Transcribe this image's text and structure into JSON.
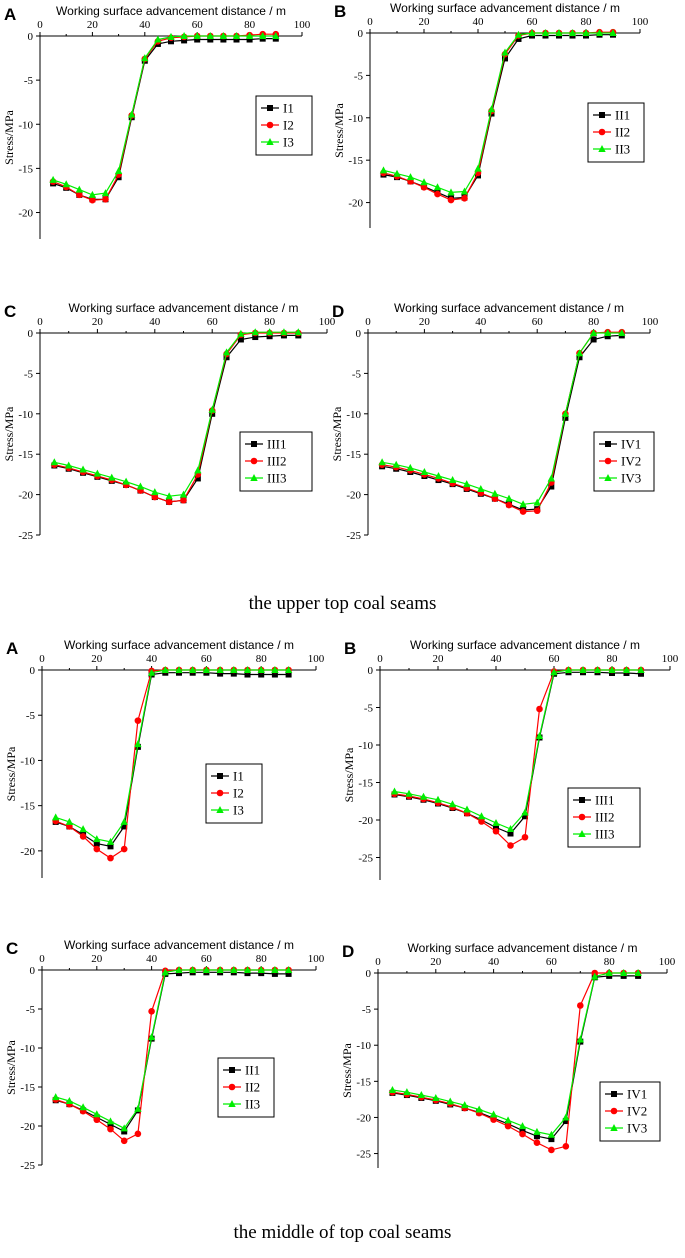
{
  "captions": {
    "upper": "the upper top coal seams",
    "middle": "the middle of top coal seams"
  },
  "colors": {
    "series1": "#000000",
    "series2": "#ff0000",
    "series3": "#00ee00"
  },
  "chart_data": [
    {
      "type": "line",
      "panel": "A",
      "group": "upper",
      "xlabel": "Working surface advancement distance / m",
      "ylabel": "Stress/MPa",
      "xlim": [
        0,
        100
      ],
      "ylim": [
        -23,
        0
      ],
      "xticks": [
        0,
        20,
        40,
        60,
        80,
        100
      ],
      "yticks": [
        0,
        -5,
        -10,
        -15,
        -20
      ],
      "x": [
        5,
        10,
        15,
        20,
        25,
        30,
        35,
        40,
        45,
        50,
        55,
        60,
        65,
        70,
        75,
        80,
        85,
        90
      ],
      "series": [
        {
          "name": "I1",
          "marker": "square",
          "values": [
            -16.7,
            -17.2,
            -18.0,
            -18.5,
            -18.5,
            -16.0,
            -9.2,
            -2.8,
            -0.9,
            -0.6,
            -0.5,
            -0.4,
            -0.4,
            -0.4,
            -0.4,
            -0.4,
            -0.3,
            -0.3
          ]
        },
        {
          "name": "I2",
          "marker": "circle",
          "values": [
            -16.5,
            -17.1,
            -18.0,
            -18.6,
            -18.5,
            -15.7,
            -9.0,
            -2.6,
            -0.6,
            -0.2,
            -0.1,
            0,
            0,
            0,
            0,
            0.1,
            0.2,
            0.2
          ]
        },
        {
          "name": "I3",
          "marker": "triangle",
          "values": [
            -16.3,
            -16.8,
            -17.4,
            -18.0,
            -17.8,
            -15.3,
            -8.9,
            -2.5,
            -0.4,
            -0.1,
            0,
            0,
            0,
            0,
            0,
            0,
            0,
            0
          ]
        }
      ]
    },
    {
      "type": "line",
      "panel": "B",
      "group": "upper",
      "xlabel": "Working surface advancement distance / m",
      "ylabel": "Stress/MPa",
      "xlim": [
        0,
        100
      ],
      "ylim": [
        -23,
        0
      ],
      "xticks": [
        0,
        20,
        40,
        60,
        80,
        100
      ],
      "yticks": [
        0,
        -5,
        -10,
        -15,
        -20
      ],
      "x": [
        5,
        10,
        15,
        20,
        25,
        30,
        35,
        40,
        45,
        50,
        55,
        60,
        65,
        70,
        75,
        80,
        85,
        90
      ],
      "series": [
        {
          "name": "II1",
          "marker": "square",
          "values": [
            -16.7,
            -17.0,
            -17.5,
            -18.1,
            -18.8,
            -19.5,
            -19.4,
            -16.8,
            -9.5,
            -3.0,
            -0.7,
            -0.3,
            -0.3,
            -0.3,
            -0.3,
            -0.3,
            -0.2,
            -0.2
          ]
        },
        {
          "name": "II2",
          "marker": "circle",
          "values": [
            -16.5,
            -16.9,
            -17.5,
            -18.2,
            -19.0,
            -19.7,
            -19.5,
            -16.5,
            -9.2,
            -2.5,
            -0.3,
            0,
            0,
            0,
            0,
            0,
            0.1,
            0.1
          ]
        },
        {
          "name": "II3",
          "marker": "triangle",
          "values": [
            -16.2,
            -16.6,
            -17.0,
            -17.6,
            -18.2,
            -18.8,
            -18.7,
            -16.0,
            -9.0,
            -2.3,
            -0.2,
            0,
            0,
            0,
            0,
            0,
            0,
            0
          ]
        }
      ]
    },
    {
      "type": "line",
      "panel": "C",
      "group": "upper",
      "xlabel": "Working surface advancement distance / m",
      "ylabel": "Stress/MPa",
      "xlim": [
        0,
        100
      ],
      "ylim": [
        -25,
        0
      ],
      "xticks": [
        0,
        20,
        40,
        60,
        80,
        100
      ],
      "yticks": [
        0,
        -5,
        -10,
        -15,
        -20,
        -25
      ],
      "x": [
        5,
        10,
        15,
        20,
        25,
        30,
        35,
        40,
        45,
        50,
        55,
        60,
        65,
        70,
        75,
        80,
        85,
        90
      ],
      "series": [
        {
          "name": "III1",
          "marker": "square",
          "values": [
            -16.4,
            -16.8,
            -17.3,
            -17.8,
            -18.3,
            -18.8,
            -19.5,
            -20.3,
            -20.9,
            -20.7,
            -18.0,
            -10.0,
            -3.0,
            -0.8,
            -0.5,
            -0.4,
            -0.3,
            -0.3
          ]
        },
        {
          "name": "III2",
          "marker": "circle",
          "values": [
            -16.3,
            -16.7,
            -17.2,
            -17.7,
            -18.2,
            -18.8,
            -19.5,
            -20.3,
            -20.9,
            -20.7,
            -17.5,
            -9.6,
            -2.6,
            -0.2,
            0,
            0,
            0,
            0
          ]
        },
        {
          "name": "III3",
          "marker": "triangle",
          "values": [
            -16.0,
            -16.4,
            -16.9,
            -17.4,
            -17.9,
            -18.4,
            -19.0,
            -19.7,
            -20.2,
            -20.0,
            -17.0,
            -9.5,
            -2.4,
            -0.1,
            0.1,
            0.1,
            0.1,
            0.1
          ]
        }
      ]
    },
    {
      "type": "line",
      "panel": "D",
      "group": "upper",
      "xlabel": "Working surface advancement distance / m",
      "ylabel": "Stress/MPa",
      "xlim": [
        0,
        100
      ],
      "ylim": [
        -25,
        0
      ],
      "xticks": [
        0,
        20,
        40,
        60,
        80,
        100
      ],
      "yticks": [
        0,
        -5,
        -10,
        -15,
        -20,
        -25
      ],
      "x": [
        5,
        10,
        15,
        20,
        25,
        30,
        35,
        40,
        45,
        50,
        55,
        60,
        65,
        70,
        75,
        80,
        85,
        90
      ],
      "series": [
        {
          "name": "IV1",
          "marker": "square",
          "values": [
            -16.5,
            -16.8,
            -17.2,
            -17.7,
            -18.2,
            -18.7,
            -19.3,
            -19.9,
            -20.5,
            -21.2,
            -21.9,
            -21.8,
            -19.0,
            -10.5,
            -3.0,
            -0.8,
            -0.4,
            -0.3
          ]
        },
        {
          "name": "IV2",
          "marker": "circle",
          "values": [
            -16.3,
            -16.6,
            -17.0,
            -17.5,
            -18.0,
            -18.6,
            -19.2,
            -19.8,
            -20.5,
            -21.3,
            -22.1,
            -22.0,
            -18.5,
            -10.0,
            -2.5,
            0,
            0.1,
            0.1
          ]
        },
        {
          "name": "IV3",
          "marker": "triangle",
          "values": [
            -16.0,
            -16.3,
            -16.7,
            -17.2,
            -17.7,
            -18.2,
            -18.7,
            -19.3,
            -19.9,
            -20.5,
            -21.2,
            -21.0,
            -18.0,
            -10.0,
            -2.5,
            0,
            0,
            0
          ]
        }
      ]
    },
    {
      "type": "line",
      "panel": "A",
      "group": "middle",
      "xlabel": "Working surface advancement distance / m",
      "ylabel": "Stress/MPa",
      "xlim": [
        0,
        100
      ],
      "ylim": [
        -23,
        0
      ],
      "xticks": [
        0,
        20,
        40,
        60,
        80,
        100
      ],
      "yticks": [
        0,
        -5,
        -10,
        -15,
        -20
      ],
      "x": [
        5,
        10,
        15,
        20,
        25,
        30,
        35,
        40,
        45,
        50,
        55,
        60,
        65,
        70,
        75,
        80,
        85,
        90
      ],
      "series": [
        {
          "name": "I1",
          "marker": "square",
          "values": [
            -16.8,
            -17.3,
            -18.2,
            -19.2,
            -19.5,
            -17.3,
            -8.5,
            -0.5,
            -0.3,
            -0.3,
            -0.3,
            -0.3,
            -0.4,
            -0.4,
            -0.5,
            -0.5,
            -0.5,
            -0.5
          ]
        },
        {
          "name": "I2",
          "marker": "circle",
          "values": [
            -16.7,
            -17.3,
            -18.4,
            -19.8,
            -20.8,
            -19.8,
            -5.6,
            -0.1,
            0,
            0,
            0,
            0,
            0,
            0,
            0,
            0,
            0,
            0
          ]
        },
        {
          "name": "I3",
          "marker": "triangle",
          "values": [
            -16.3,
            -16.8,
            -17.6,
            -18.7,
            -19.0,
            -16.8,
            -8.2,
            -0.3,
            0,
            0,
            0,
            0,
            0,
            0,
            0,
            0,
            0,
            0
          ]
        }
      ]
    },
    {
      "type": "line",
      "panel": "B",
      "group": "middle",
      "xlabel": "Working surface advancement distance / m",
      "ylabel": "Stress/MPa",
      "xlim": [
        0,
        100
      ],
      "ylim": [
        -28,
        0
      ],
      "xticks": [
        0,
        20,
        40,
        60,
        80,
        100
      ],
      "yticks": [
        0,
        -5,
        -10,
        -15,
        -20,
        -25
      ],
      "x": [
        5,
        10,
        15,
        20,
        25,
        30,
        35,
        40,
        45,
        50,
        55,
        60,
        65,
        70,
        75,
        80,
        85,
        90
      ],
      "series": [
        {
          "name": "III1",
          "marker": "square",
          "values": [
            -16.6,
            -16.9,
            -17.3,
            -17.8,
            -18.4,
            -19.1,
            -20.0,
            -21.0,
            -21.8,
            -19.5,
            -9.0,
            -0.5,
            -0.3,
            -0.3,
            -0.3,
            -0.4,
            -0.4,
            -0.5
          ]
        },
        {
          "name": "III2",
          "marker": "circle",
          "values": [
            -16.5,
            -16.8,
            -17.2,
            -17.7,
            -18.3,
            -19.1,
            -20.2,
            -21.5,
            -23.4,
            -22.3,
            -5.2,
            -0.2,
            0,
            0,
            0,
            0,
            0,
            0
          ]
        },
        {
          "name": "III3",
          "marker": "triangle",
          "values": [
            -16.2,
            -16.5,
            -16.9,
            -17.3,
            -17.9,
            -18.6,
            -19.5,
            -20.4,
            -21.2,
            -19.0,
            -8.8,
            -0.3,
            0,
            0,
            0,
            0,
            0,
            0
          ]
        }
      ]
    },
    {
      "type": "line",
      "panel": "C",
      "group": "middle",
      "xlabel": "Working surface advancement distance / m",
      "ylabel": "Stress/MPa",
      "xlim": [
        0,
        100
      ],
      "ylim": [
        -25,
        0
      ],
      "xticks": [
        0,
        20,
        40,
        60,
        80,
        100
      ],
      "yticks": [
        0,
        -5,
        -10,
        -15,
        -20,
        -25
      ],
      "x": [
        5,
        10,
        15,
        20,
        25,
        30,
        35,
        40,
        45,
        50,
        55,
        60,
        65,
        70,
        75,
        80,
        85,
        90
      ],
      "series": [
        {
          "name": "II1",
          "marker": "square",
          "values": [
            -16.7,
            -17.2,
            -18.0,
            -18.9,
            -19.8,
            -20.7,
            -18.0,
            -8.8,
            -0.5,
            -0.4,
            -0.3,
            -0.3,
            -0.3,
            -0.3,
            -0.4,
            -0.4,
            -0.5,
            -0.5
          ]
        },
        {
          "name": "II2",
          "marker": "circle",
          "values": [
            -16.6,
            -17.2,
            -18.1,
            -19.2,
            -20.4,
            -21.9,
            -21.0,
            -5.3,
            -0.1,
            0,
            0,
            0,
            0,
            0,
            0,
            0,
            0,
            0
          ]
        },
        {
          "name": "II3",
          "marker": "triangle",
          "values": [
            -16.3,
            -16.8,
            -17.6,
            -18.5,
            -19.4,
            -20.3,
            -17.8,
            -8.6,
            -0.3,
            0,
            0,
            0,
            0,
            0,
            0,
            0,
            0,
            0
          ]
        }
      ]
    },
    {
      "type": "line",
      "panel": "D",
      "group": "middle",
      "xlabel": "Working surface advancement distance / m",
      "ylabel": "Stress/MPa",
      "xlim": [
        0,
        100
      ],
      "ylim": [
        -27,
        0
      ],
      "xticks": [
        0,
        20,
        40,
        60,
        80,
        100
      ],
      "yticks": [
        0,
        -5,
        -10,
        -15,
        -20,
        -25
      ],
      "x": [
        5,
        10,
        15,
        20,
        25,
        30,
        35,
        40,
        45,
        50,
        55,
        60,
        65,
        70,
        75,
        80,
        85,
        90
      ],
      "series": [
        {
          "name": "IV1",
          "marker": "square",
          "values": [
            -16.6,
            -16.9,
            -17.3,
            -17.7,
            -18.2,
            -18.7,
            -19.3,
            -20.1,
            -20.9,
            -21.8,
            -22.6,
            -23.0,
            -20.5,
            -9.5,
            -0.6,
            -0.4,
            -0.4,
            -0.4
          ]
        },
        {
          "name": "IV2",
          "marker": "circle",
          "values": [
            -16.5,
            -16.8,
            -17.2,
            -17.6,
            -18.1,
            -18.7,
            -19.4,
            -20.3,
            -21.2,
            -22.3,
            -23.5,
            -24.5,
            -24.0,
            -4.5,
            0,
            0,
            0,
            0
          ]
        },
        {
          "name": "IV3",
          "marker": "triangle",
          "values": [
            -16.2,
            -16.5,
            -16.9,
            -17.3,
            -17.8,
            -18.3,
            -18.9,
            -19.6,
            -20.4,
            -21.2,
            -22.0,
            -22.4,
            -20.0,
            -9.2,
            -0.5,
            0,
            0,
            0
          ]
        }
      ]
    }
  ]
}
